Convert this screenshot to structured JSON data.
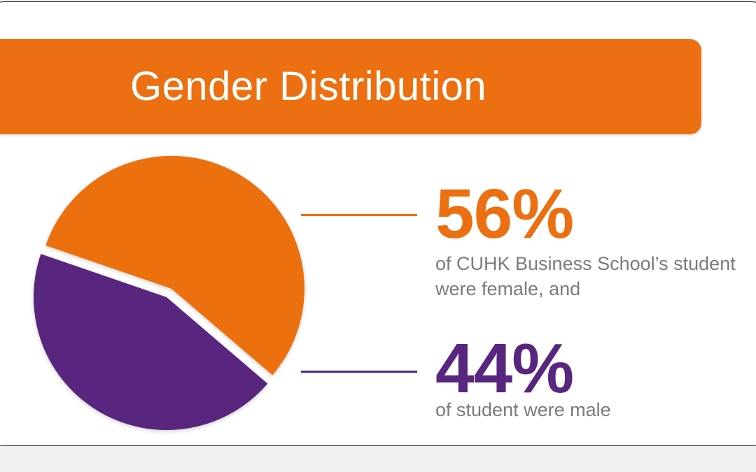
{
  "title": "Gender Distribution",
  "colors": {
    "accent_orange": "#ec7011",
    "accent_purple": "#58267e",
    "caption_gray": "#7b7b7b"
  },
  "chart_data": {
    "type": "pie",
    "slices": [
      {
        "label": "female",
        "value": 56,
        "color": "#ec7011",
        "exploded": true
      },
      {
        "label": "male",
        "value": 44,
        "color": "#58267e",
        "exploded": false
      }
    ]
  },
  "stats": [
    {
      "value_text": "56%",
      "caption_lines": [
        "of CUHK Business School’s student",
        "were female, and"
      ]
    },
    {
      "value_text": "44%",
      "caption_lines": [
        "of student were male"
      ]
    }
  ]
}
